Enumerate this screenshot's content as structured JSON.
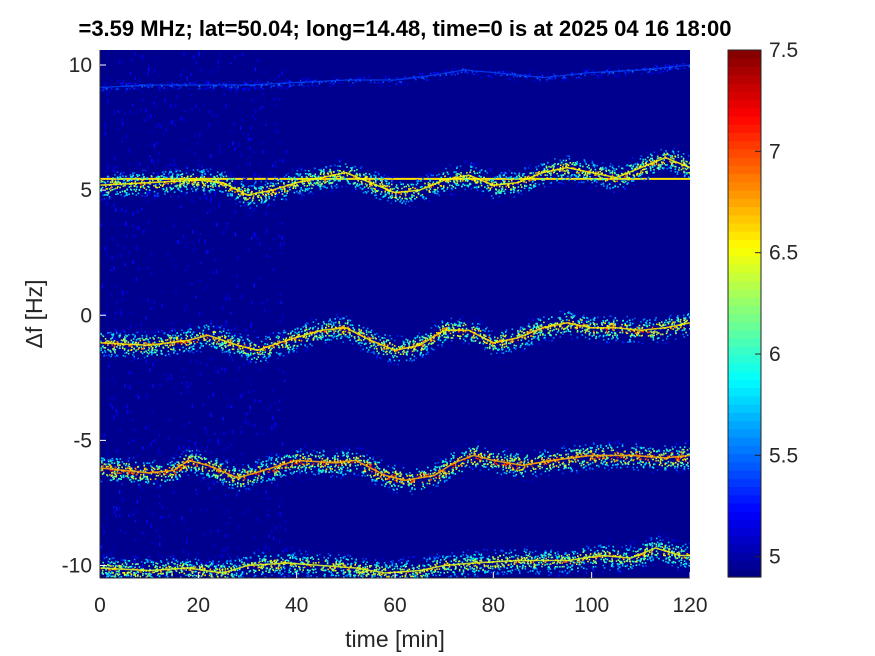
{
  "chart_data": {
    "type": "heatmap",
    "title": "=3.59 MHz;  lat=50.04; long=14.48, time=0 is at 2025 04 16 18:00",
    "xlabel": "time [min]",
    "ylabel": "Δf [Hz]",
    "xlim": [
      0,
      120
    ],
    "ylim": [
      -10.5,
      10.6
    ],
    "x_ticks": [
      0,
      20,
      40,
      60,
      80,
      100,
      120
    ],
    "x_tick_labels": [
      "0",
      "20",
      "40",
      "60",
      "80",
      "100",
      "120"
    ],
    "y_ticks": [
      10,
      5,
      0,
      -5,
      -10
    ],
    "y_tick_labels": [
      "10",
      "5",
      "0",
      "-5",
      "-10"
    ],
    "background_value": 4.9,
    "colorbar": {
      "colormap": "jet",
      "range": [
        4.9,
        7.5
      ],
      "ticks": [
        7.5,
        7,
        6.5,
        6,
        5.5,
        5
      ],
      "tick_labels": [
        "7.5",
        "7",
        "6.5",
        "6",
        "5.5",
        "5"
      ]
    },
    "traces": [
      {
        "name": "trace near +10 Hz",
        "points": [
          [
            0,
            9.1
          ],
          [
            10,
            9.2
          ],
          [
            20,
            9.2
          ],
          [
            30,
            9.2
          ],
          [
            40,
            9.3
          ],
          [
            50,
            9.4
          ],
          [
            60,
            9.4
          ],
          [
            68,
            9.6
          ],
          [
            74,
            9.8
          ],
          [
            80,
            9.7
          ],
          [
            90,
            9.5
          ],
          [
            100,
            9.7
          ],
          [
            110,
            9.8
          ],
          [
            120,
            10.0
          ]
        ],
        "peak_value": 5.6
      },
      {
        "name": "horizontal reference line near +5.4 Hz",
        "points": [
          [
            0,
            5.45
          ],
          [
            120,
            5.45
          ]
        ],
        "peak_value": 6.6
      },
      {
        "name": "trace near +5 Hz",
        "points": [
          [
            0,
            5.2
          ],
          [
            10,
            5.3
          ],
          [
            20,
            5.4
          ],
          [
            25,
            5.3
          ],
          [
            30,
            4.8
          ],
          [
            35,
            5.0
          ],
          [
            40,
            5.3
          ],
          [
            50,
            5.7
          ],
          [
            55,
            5.3
          ],
          [
            60,
            4.9
          ],
          [
            65,
            5.0
          ],
          [
            70,
            5.4
          ],
          [
            75,
            5.6
          ],
          [
            80,
            5.2
          ],
          [
            85,
            5.3
          ],
          [
            90,
            5.7
          ],
          [
            95,
            5.9
          ],
          [
            100,
            5.7
          ],
          [
            105,
            5.5
          ],
          [
            110,
            5.9
          ],
          [
            115,
            6.3
          ],
          [
            120,
            5.9
          ]
        ],
        "peak_value": 7.2
      },
      {
        "name": "trace near -1 Hz",
        "points": [
          [
            0,
            -1.1
          ],
          [
            10,
            -1.2
          ],
          [
            18,
            -1.0
          ],
          [
            22,
            -0.8
          ],
          [
            28,
            -1.2
          ],
          [
            32,
            -1.4
          ],
          [
            38,
            -1.0
          ],
          [
            45,
            -0.6
          ],
          [
            50,
            -0.5
          ],
          [
            55,
            -1.0
          ],
          [
            60,
            -1.4
          ],
          [
            65,
            -1.2
          ],
          [
            70,
            -0.6
          ],
          [
            75,
            -0.6
          ],
          [
            80,
            -1.1
          ],
          [
            85,
            -0.9
          ],
          [
            90,
            -0.5
          ],
          [
            95,
            -0.3
          ],
          [
            100,
            -0.5
          ],
          [
            105,
            -0.5
          ],
          [
            110,
            -0.6
          ],
          [
            115,
            -0.5
          ],
          [
            120,
            -0.3
          ]
        ],
        "peak_value": 7.3
      },
      {
        "name": "trace near -6 Hz",
        "points": [
          [
            0,
            -6.1
          ],
          [
            10,
            -6.3
          ],
          [
            15,
            -6.2
          ],
          [
            18,
            -5.8
          ],
          [
            22,
            -6.0
          ],
          [
            28,
            -6.5
          ],
          [
            35,
            -6.1
          ],
          [
            40,
            -5.8
          ],
          [
            48,
            -5.9
          ],
          [
            52,
            -5.8
          ],
          [
            58,
            -6.4
          ],
          [
            62,
            -6.6
          ],
          [
            68,
            -6.4
          ],
          [
            72,
            -5.9
          ],
          [
            76,
            -5.6
          ],
          [
            80,
            -5.8
          ],
          [
            86,
            -6.0
          ],
          [
            92,
            -5.8
          ],
          [
            100,
            -5.6
          ],
          [
            108,
            -5.6
          ],
          [
            115,
            -5.7
          ],
          [
            120,
            -5.6
          ]
        ],
        "peak_value": 7.5
      },
      {
        "name": "trace near -10 Hz",
        "points": [
          [
            0,
            -10.1
          ],
          [
            10,
            -10.2
          ],
          [
            18,
            -10.1
          ],
          [
            25,
            -10.3
          ],
          [
            30,
            -10.0
          ],
          [
            38,
            -9.9
          ],
          [
            45,
            -10.0
          ],
          [
            52,
            -10.1
          ],
          [
            58,
            -10.3
          ],
          [
            65,
            -10.2
          ],
          [
            70,
            -10.0
          ],
          [
            76,
            -9.9
          ],
          [
            85,
            -9.8
          ],
          [
            95,
            -9.8
          ],
          [
            102,
            -9.6
          ],
          [
            108,
            -9.7
          ],
          [
            113,
            -9.3
          ],
          [
            118,
            -9.6
          ],
          [
            120,
            -9.6
          ]
        ],
        "peak_value": 7.1
      }
    ]
  }
}
